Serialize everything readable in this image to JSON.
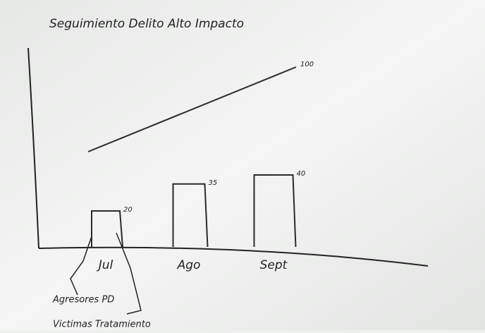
{
  "chart_data": {
    "type": "bar",
    "title": "Seguimiento Delito Alto Impacto",
    "categories": [
      "Jul",
      "Ago",
      "Sept"
    ],
    "values": [
      20,
      35,
      40
    ],
    "target": 100,
    "ylim": [
      0,
      100
    ],
    "color": "#2a2a2a",
    "annotations": [
      "Agresores PD",
      "Victimas Tratamiento"
    ]
  }
}
